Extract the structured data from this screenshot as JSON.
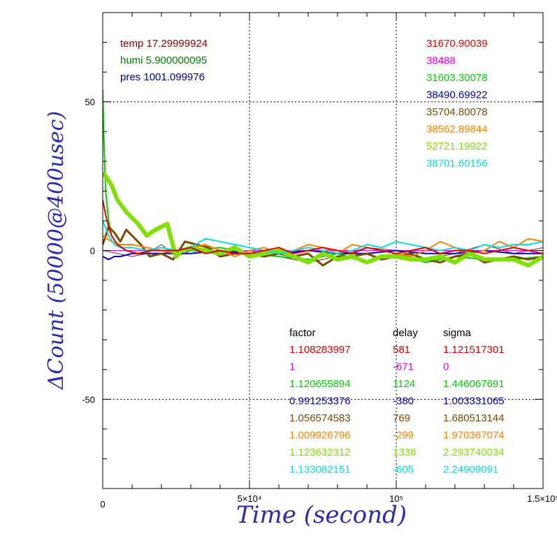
{
  "chart_data": {
    "type": "line",
    "xlabel": "Time (second)",
    "ylabel": "ΔCount (50000@400usec)",
    "xlim": [
      0,
      150000
    ],
    "ylim": [
      -80,
      80
    ],
    "grid": true,
    "x_ticks": [
      {
        "value": 0,
        "label": "0"
      },
      {
        "value": 50000,
        "label": "5×10⁴"
      },
      {
        "value": 100000,
        "label": "10⁵"
      },
      {
        "value": 150000,
        "label": "1.5×10⁵"
      }
    ],
    "y_ticks": [
      {
        "value": 50,
        "label": "50"
      },
      {
        "value": 0,
        "label": "0"
      },
      {
        "value": -50,
        "label": "-50"
      }
    ],
    "env_text": [
      {
        "text": "temp 17.29999924",
        "color": "#8b0000"
      },
      {
        "text": "humi 5.900000095",
        "color": "#008000"
      },
      {
        "text": "pres 1001.099976",
        "color": "#00008b"
      }
    ],
    "means": [
      {
        "text": "31670.90039",
        "color": "#e00000"
      },
      {
        "text": "38488",
        "color": "#e000e0"
      },
      {
        "text": "31603.30078",
        "color": "#00d000"
      },
      {
        "text": "38490.69922",
        "color": "#0000c8"
      },
      {
        "text": "35704.80078",
        "color": "#7a4a00"
      },
      {
        "text": "38562.89844",
        "color": "#ff8000"
      },
      {
        "text": "52721.19922",
        "color": "#80e000"
      },
      {
        "text": "38701.60156",
        "color": "#00e0e0"
      }
    ],
    "table": {
      "headers": [
        "factor",
        "delay",
        "sigma"
      ],
      "rows": [
        {
          "factor": "1.108283997",
          "delay": "581",
          "sigma": "1.121517301",
          "color": "#e00000"
        },
        {
          "factor": "1",
          "delay": "-671",
          "sigma": "0",
          "color": "#e000e0"
        },
        {
          "factor": "1.120655894",
          "delay": "1124",
          "sigma": "1.446067691",
          "color": "#00d000"
        },
        {
          "factor": "0.991253376",
          "delay": "-380",
          "sigma": "1.003331065",
          "color": "#0000c8"
        },
        {
          "factor": "1.056574583",
          "delay": "769",
          "sigma": "1.680513144",
          "color": "#7a4a00"
        },
        {
          "factor": "1.009926796",
          "delay": "-299",
          "sigma": "1.970367074",
          "color": "#ff8000"
        },
        {
          "factor": "1.123632312",
          "delay": "1338",
          "sigma": "2.293740034",
          "color": "#80e000"
        },
        {
          "factor": "1.133082151",
          "delay": "-605",
          "sigma": "2.24909091",
          "color": "#00e0e0"
        }
      ]
    },
    "series": [
      {
        "color": "#8b2020",
        "width": 1,
        "x": [
          0,
          5000,
          10000,
          15000,
          20000,
          25000,
          30000,
          40000,
          50000,
          60000,
          70000,
          80000,
          90000,
          100000,
          110000,
          120000,
          130000,
          140000,
          150000
        ],
        "y": [
          0,
          -1,
          -2,
          -1,
          2,
          -2,
          0,
          -1,
          0,
          -2,
          -4,
          -2,
          1,
          0,
          -3,
          -1,
          2,
          -1,
          1
        ]
      },
      {
        "color": "#e000e0",
        "width": 1,
        "x": [
          0,
          10000,
          20000,
          30000,
          40000,
          50000,
          60000,
          70000,
          80000,
          90000,
          100000,
          110000,
          120000,
          130000,
          140000,
          150000
        ],
        "y": [
          0,
          0,
          0,
          0,
          0,
          0,
          0,
          0,
          0,
          0,
          0,
          0,
          0,
          0,
          0,
          0
        ]
      },
      {
        "color": "#00d000",
        "width": 2,
        "x": [
          0,
          300,
          1000,
          2000,
          3000,
          5000,
          8000,
          12000,
          20000,
          30000,
          40000,
          50000,
          60000,
          70000,
          80000,
          90000,
          100000,
          110000,
          120000,
          130000,
          140000,
          150000
        ],
        "y": [
          54,
          40,
          20,
          10,
          5,
          2,
          0,
          -1,
          -1,
          0,
          1,
          -1,
          -2,
          -3,
          -1,
          -4,
          -1,
          -4,
          -2,
          -3,
          -3,
          -2
        ]
      },
      {
        "color": "#0000c8",
        "width": 2,
        "x": [
          0,
          2000,
          4000,
          6000,
          10000,
          20000,
          30000,
          40000,
          50000,
          60000,
          70000,
          80000,
          90000,
          100000,
          110000,
          120000,
          130000,
          140000,
          150000
        ],
        "y": [
          -2,
          -3,
          -2,
          -2,
          -1,
          -1,
          -1,
          0,
          -1,
          -1,
          0,
          -1,
          -1,
          0,
          -1,
          -1,
          0,
          -1,
          -1
        ]
      },
      {
        "color": "#7a4a00",
        "width": 3,
        "x": [
          0,
          2000,
          4000,
          6000,
          8000,
          10000,
          13000,
          16000,
          20000,
          24000,
          28000,
          32000,
          36000,
          40000,
          45000,
          50000,
          55000,
          60000,
          65000,
          70000,
          75000,
          80000,
          85000,
          90000,
          95000,
          100000,
          105000,
          110000,
          115000,
          120000,
          125000,
          130000,
          135000,
          140000,
          145000,
          150000
        ],
        "y": [
          2,
          8,
          6,
          3,
          7,
          5,
          2,
          -2,
          -1,
          -3,
          3,
          2,
          1,
          -2,
          -1,
          -1,
          -2,
          -1,
          -2,
          -1,
          -5,
          -2,
          -2,
          -1,
          -3,
          -2,
          -1,
          -3,
          -4,
          -2,
          -1,
          -4,
          -3,
          -2,
          -3,
          -2
        ]
      },
      {
        "color": "#ff8000",
        "width": 2,
        "x": [
          0,
          3000,
          6000,
          10000,
          15000,
          20000,
          25000,
          30000,
          35000,
          40000,
          45000,
          50000,
          55000,
          60000,
          65000,
          70000,
          75000,
          80000,
          85000,
          90000,
          95000,
          100000,
          105000,
          110000,
          115000,
          120000,
          125000,
          130000,
          135000,
          140000,
          145000,
          150000
        ],
        "y": [
          5,
          3,
          2,
          2,
          1,
          0,
          -1,
          1,
          2,
          0,
          -2,
          0,
          1,
          -1,
          0,
          2,
          1,
          -1,
          2,
          1,
          0,
          -1,
          -2,
          0,
          3,
          1,
          -1,
          0,
          3,
          1,
          4,
          3
        ]
      },
      {
        "color": "#80e000",
        "width": 6,
        "x": [
          0,
          1000,
          3000,
          5000,
          8000,
          10000,
          12000,
          15000,
          18000,
          20000,
          22000,
          23000,
          25000,
          27000,
          30000,
          35000,
          40000,
          45000,
          50000,
          55000,
          60000,
          65000,
          70000,
          75000,
          80000,
          85000,
          90000,
          95000,
          100000,
          105000,
          110000,
          115000,
          120000,
          125000,
          130000,
          135000,
          140000,
          145000,
          150000
        ],
        "y": [
          26,
          25,
          22,
          17,
          13,
          11,
          9,
          5,
          7,
          8,
          9,
          5,
          -2,
          0,
          1,
          0,
          -1,
          1,
          -2,
          -1,
          0,
          -2,
          -4,
          -1,
          -3,
          -2,
          -4,
          -2,
          -2,
          -3,
          -3,
          -2,
          -4,
          -1,
          -3,
          -3,
          -3,
          -5,
          -2
        ]
      },
      {
        "color": "#00e0e0",
        "width": 2,
        "x": [
          0,
          2000,
          4000,
          6000,
          10000,
          15000,
          20000,
          25000,
          30000,
          35000,
          40000,
          45000,
          50000,
          55000,
          60000,
          65000,
          70000,
          75000,
          80000,
          85000,
          90000,
          95000,
          100000,
          105000,
          110000,
          115000,
          120000,
          125000,
          130000,
          135000,
          140000,
          145000,
          150000
        ],
        "y": [
          10,
          5,
          2,
          1,
          1,
          0,
          1,
          0,
          1,
          4,
          3,
          2,
          1,
          0,
          -1,
          0,
          1,
          0,
          -1,
          0,
          2,
          1,
          3,
          2,
          1,
          0,
          1,
          0,
          2,
          1,
          2,
          2,
          3
        ]
      },
      {
        "color": "#e00000",
        "width": 2,
        "x": [
          0,
          1000,
          2000,
          3000,
          5000,
          8000,
          12000,
          16000,
          20000,
          25000,
          30000,
          35000,
          40000,
          45000,
          50000,
          55000,
          60000,
          65000,
          70000,
          75000,
          80000,
          85000,
          90000,
          95000,
          100000,
          105000,
          110000,
          115000,
          120000,
          125000,
          130000,
          135000,
          140000,
          145000,
          150000
        ],
        "y": [
          17,
          12,
          8,
          5,
          2,
          0,
          -1,
          0,
          0,
          0,
          1,
          -1,
          0,
          -1,
          -1,
          0,
          1,
          -1,
          0,
          1,
          0,
          -1,
          1,
          0,
          -1,
          0,
          1,
          -1,
          0,
          0,
          -1,
          0,
          1,
          0,
          -1
        ]
      }
    ]
  }
}
